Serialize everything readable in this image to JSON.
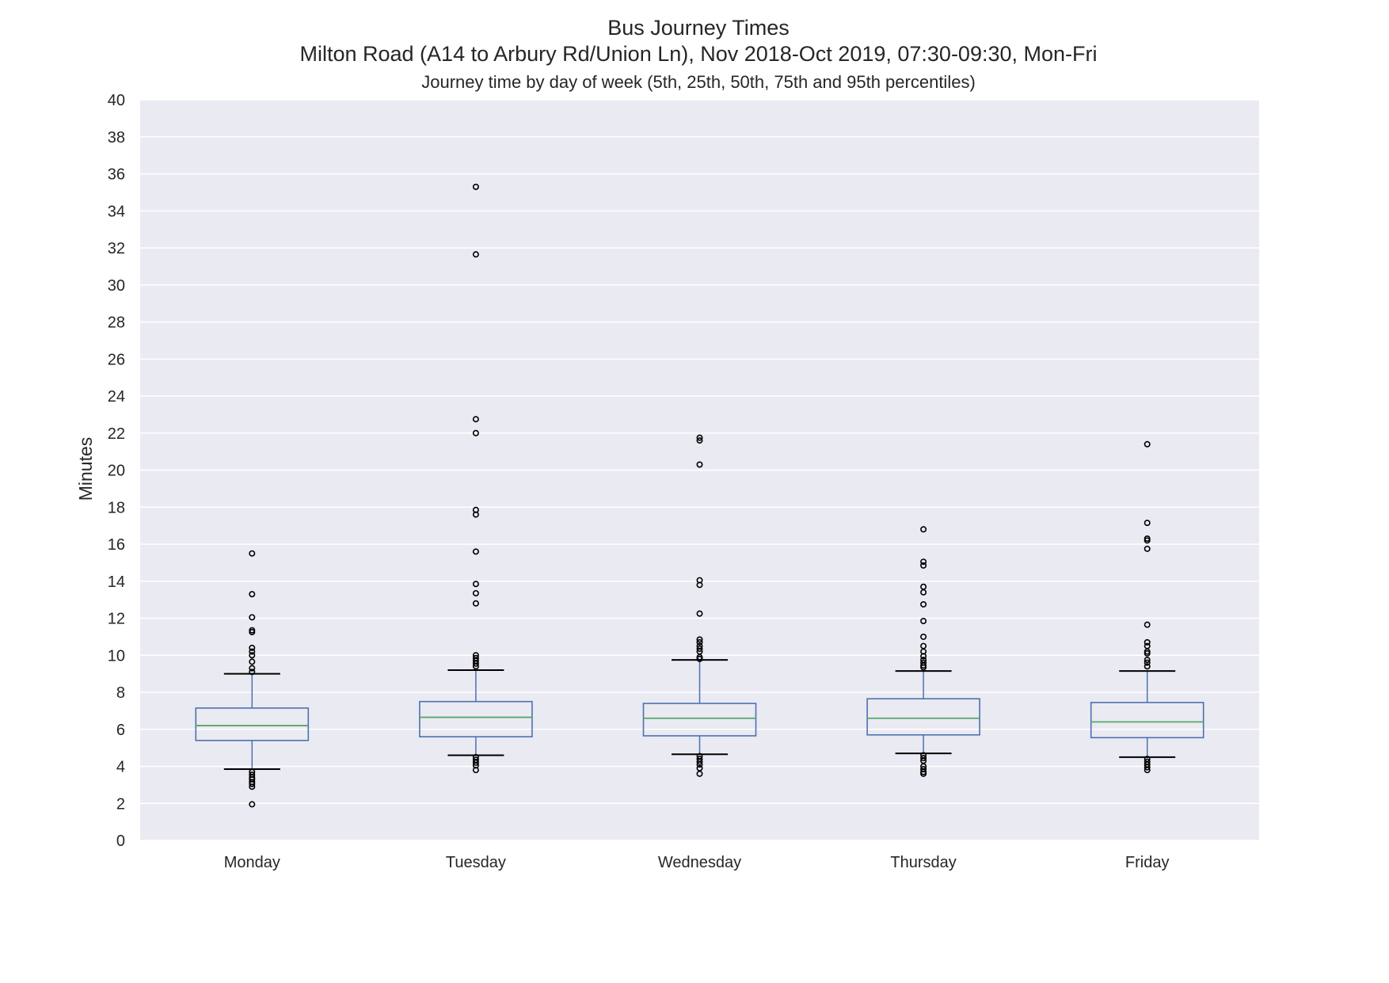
{
  "chart_data": {
    "type": "box",
    "title": "Bus Journey Times",
    "subtitle": "Milton Road (A14 to Arbury Rd/Union Ln), Nov 2018-Oct 2019, 07:30-09:30, Mon-Fri",
    "caption": "Journey time by day of week (5th, 25th, 50th, 75th and 95th percentiles)",
    "xlabel": "",
    "ylabel": "Minutes",
    "ylim": [
      0,
      40
    ],
    "yticks": [
      0,
      2,
      4,
      6,
      8,
      10,
      12,
      14,
      16,
      18,
      20,
      22,
      24,
      26,
      28,
      30,
      32,
      34,
      36,
      38,
      40
    ],
    "grid": true,
    "colors": {
      "plot_background": "#eaeaf2",
      "grid": "#ffffff",
      "box": "#4c72b0",
      "median": "#55a868",
      "whisker_cap": "#000000",
      "outlier": "#000000"
    },
    "categories": [
      "Monday",
      "Tuesday",
      "Wednesday",
      "Thursday",
      "Friday"
    ],
    "boxes": [
      {
        "label": "Monday",
        "p5": 3.85,
        "p25": 5.4,
        "p50": 6.2,
        "p75": 7.15,
        "p95": 9.0,
        "outliers": [
          15.5,
          13.3,
          12.05,
          11.35,
          11.25,
          10.4,
          10.2,
          10.0,
          9.65,
          9.3,
          9.1,
          3.7,
          3.55,
          3.4,
          3.3,
          3.15,
          3.05,
          2.9,
          1.95
        ]
      },
      {
        "label": "Tuesday",
        "p5": 4.6,
        "p25": 5.6,
        "p50": 6.65,
        "p75": 7.5,
        "p95": 9.2,
        "outliers": [
          35.3,
          31.65,
          22.75,
          22.0,
          17.85,
          17.6,
          15.6,
          13.85,
          13.35,
          12.8,
          10.0,
          9.85,
          9.7,
          9.55,
          9.4,
          4.5,
          4.35,
          4.2,
          4.05,
          3.8
        ]
      },
      {
        "label": "Wednesday",
        "p5": 4.65,
        "p25": 5.65,
        "p50": 6.6,
        "p75": 7.4,
        "p95": 9.75,
        "outliers": [
          21.75,
          21.6,
          20.3,
          14.05,
          13.8,
          12.25,
          10.85,
          10.7,
          10.5,
          10.35,
          10.2,
          9.9,
          9.8,
          4.55,
          4.4,
          4.25,
          4.1,
          3.9,
          3.6
        ]
      },
      {
        "label": "Thursday",
        "p5": 4.7,
        "p25": 5.7,
        "p50": 6.6,
        "p75": 7.65,
        "p95": 9.15,
        "outliers": [
          16.8,
          15.05,
          14.85,
          13.7,
          13.4,
          12.75,
          11.85,
          11.0,
          10.5,
          10.2,
          9.95,
          9.75,
          9.6,
          9.45,
          9.35,
          4.6,
          4.45,
          4.3,
          4.0,
          3.85,
          3.7,
          3.6
        ]
      },
      {
        "label": "Friday",
        "p5": 4.5,
        "p25": 5.55,
        "p50": 6.4,
        "p75": 7.45,
        "p95": 9.15,
        "outliers": [
          21.4,
          17.15,
          16.3,
          16.2,
          15.75,
          11.65,
          10.7,
          10.5,
          10.2,
          10.1,
          9.75,
          9.6,
          9.4,
          4.4,
          4.25,
          4.1,
          3.95,
          3.8
        ]
      }
    ]
  }
}
